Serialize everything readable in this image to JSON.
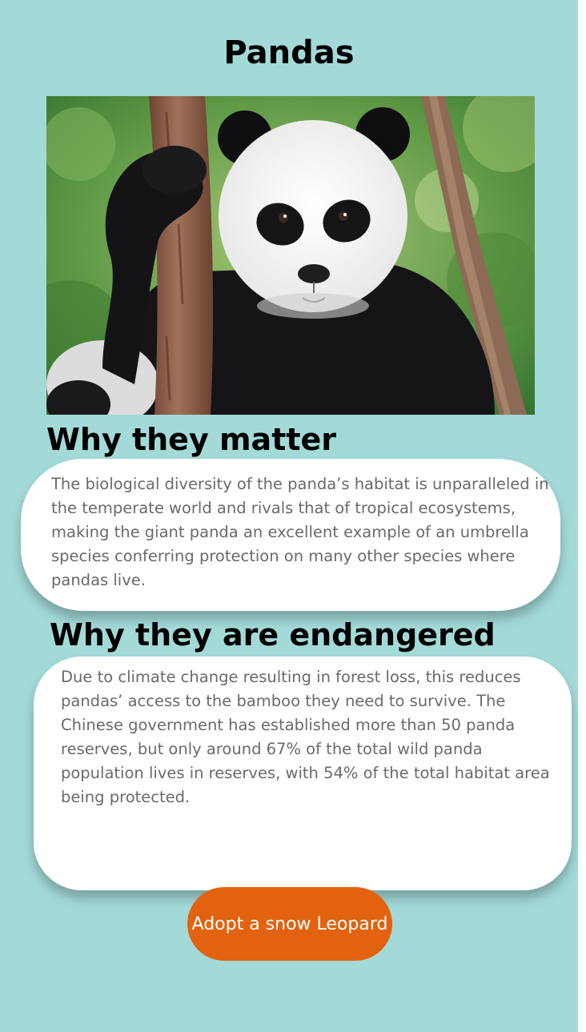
{
  "page": {
    "title": "Pandas"
  },
  "hero": {
    "alt": "Giant panda cub clinging to a tree trunk"
  },
  "sections": [
    {
      "heading": "Why they matter",
      "body": "The biological diversity of the panda’s habitat is unparalleled in the temperate world and rivals that of tropical ecosystems, making the giant panda an excellent example of an umbrella species conferring protection on many other species where pandas live."
    },
    {
      "heading": "Why they are endangered",
      "body": "Due to climate change resulting in forest loss, this reduces pandas’ access to the bamboo they need to survive. The Chinese government has established more than 50 panda reserves, but only around 67% of the total wild panda population lives in reserves, with 54% of the total habitat area being protected."
    }
  ],
  "cta": {
    "label": "Adopt a snow Leopard"
  },
  "colors": {
    "background": "#a3dad8",
    "card": "#ffffff",
    "body_text": "#6a6a6a",
    "button": "#e2620f",
    "button_text": "#ffffff"
  }
}
